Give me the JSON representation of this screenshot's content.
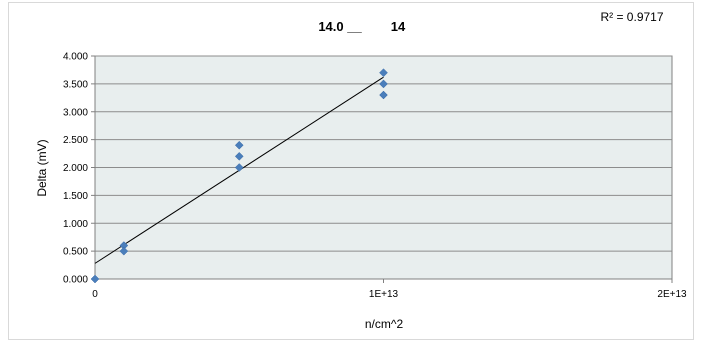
{
  "chart_data": {
    "type": "scatter",
    "title_left": "14.0 __",
    "title_right": "14",
    "annotation": "R² = 0.9717",
    "xlabel": "n/cm^2",
    "ylabel": "Delta (mV)",
    "xlim": [
      0,
      20000000000000.0
    ],
    "ylim": [
      0,
      4
    ],
    "x_ticks": [
      {
        "value": 0,
        "label": "0"
      },
      {
        "value": 10000000000000.0,
        "label": "1E+13"
      },
      {
        "value": 20000000000000.0,
        "label": "2E+13"
      }
    ],
    "y_ticks": [
      {
        "value": 0,
        "label": "0.000"
      },
      {
        "value": 0.5,
        "label": "0.500"
      },
      {
        "value": 1.0,
        "label": "1.000"
      },
      {
        "value": 1.5,
        "label": "1.500"
      },
      {
        "value": 2.0,
        "label": "2.000"
      },
      {
        "value": 2.5,
        "label": "2.500"
      },
      {
        "value": 3.0,
        "label": "3.000"
      },
      {
        "value": 3.5,
        "label": "3.500"
      },
      {
        "value": 4.0,
        "label": "4.000"
      }
    ],
    "grid": "horizontal",
    "series": [
      {
        "marker": "diamond",
        "color": "#4a7ebb",
        "x": [
          0,
          1000000000000.0,
          1000000000000.0,
          5000000000000.0,
          5000000000000.0,
          5000000000000.0,
          10000000000000.0,
          10000000000000.0,
          10000000000000.0
        ],
        "y": [
          0.0,
          0.6,
          0.5,
          2.4,
          2.2,
          2.0,
          3.7,
          3.5,
          3.3
        ]
      }
    ],
    "trendline": {
      "type": "linear",
      "color": "#000000",
      "x": [
        0,
        10000000000000.0
      ],
      "y": [
        0.28,
        3.62
      ]
    },
    "plot_background": "#e8eeee",
    "gridline_color": "#8c8c8c"
  }
}
